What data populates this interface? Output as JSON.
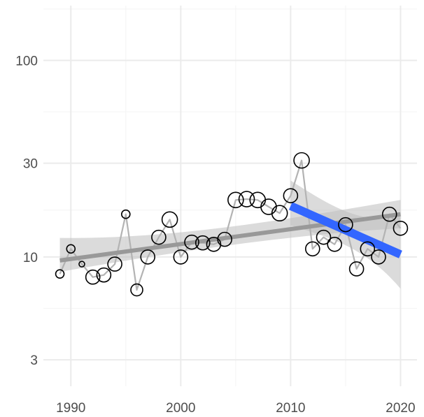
{
  "chart_data": {
    "type": "scatter",
    "title": "",
    "xlabel": "",
    "ylabel": "",
    "y_scale": "log10",
    "xlim": [
      1987.5,
      2021.5
    ],
    "ylim": [
      2.2,
      190
    ],
    "grid": true,
    "x_ticks": [
      1990,
      2000,
      2010,
      2020
    ],
    "x_tick_labels": [
      "1990",
      "2000",
      "2010",
      "2020"
    ],
    "y_ticks": [
      3,
      10,
      30,
      100
    ],
    "y_tick_labels": [
      "3",
      "10",
      "30",
      "100"
    ],
    "points": [
      {
        "x": 1989,
        "y": 8.2,
        "size": 1
      },
      {
        "x": 1990,
        "y": 11.0,
        "size": 1
      },
      {
        "x": 1991,
        "y": 9.2,
        "size": 0
      },
      {
        "x": 1992,
        "y": 7.9,
        "size": 3
      },
      {
        "x": 1993,
        "y": 8.1,
        "size": 3
      },
      {
        "x": 1994,
        "y": 9.2,
        "size": 3
      },
      {
        "x": 1995,
        "y": 16.5,
        "size": 1
      },
      {
        "x": 1996,
        "y": 6.8,
        "size": 2
      },
      {
        "x": 1997,
        "y": 10.0,
        "size": 3
      },
      {
        "x": 1998,
        "y": 12.6,
        "size": 3
      },
      {
        "x": 1999,
        "y": 15.5,
        "size": 4
      },
      {
        "x": 2000,
        "y": 10.0,
        "size": 3
      },
      {
        "x": 2001,
        "y": 11.9,
        "size": 3
      },
      {
        "x": 2002,
        "y": 11.8,
        "size": 3
      },
      {
        "x": 2003,
        "y": 11.6,
        "size": 3
      },
      {
        "x": 2004,
        "y": 12.3,
        "size": 3
      },
      {
        "x": 2005,
        "y": 19.5,
        "size": 4
      },
      {
        "x": 2006,
        "y": 19.7,
        "size": 4
      },
      {
        "x": 2007,
        "y": 19.5,
        "size": 4
      },
      {
        "x": 2008,
        "y": 18.0,
        "size": 4
      },
      {
        "x": 2009,
        "y": 16.7,
        "size": 4
      },
      {
        "x": 2010,
        "y": 20.5,
        "size": 3
      },
      {
        "x": 2011,
        "y": 31.0,
        "size": 4
      },
      {
        "x": 2012,
        "y": 11.0,
        "size": 3
      },
      {
        "x": 2013,
        "y": 12.6,
        "size": 3
      },
      {
        "x": 2014,
        "y": 11.6,
        "size": 3
      },
      {
        "x": 2015,
        "y": 14.6,
        "size": 3
      },
      {
        "x": 2016,
        "y": 8.7,
        "size": 3
      },
      {
        "x": 2017,
        "y": 11.0,
        "size": 3
      },
      {
        "x": 2018,
        "y": 10.0,
        "size": 3
      },
      {
        "x": 2019,
        "y": 16.5,
        "size": 3
      },
      {
        "x": 2020,
        "y": 14.0,
        "size": 3
      }
    ],
    "trend_all": {
      "x": [
        1989,
        2020
      ],
      "y": [
        9.6,
        16.5
      ],
      "ci_low": [
        8.4,
        14.0
      ],
      "ci_high": [
        12.5,
        19.5
      ]
    },
    "trend_recent": {
      "x": [
        2010,
        2020
      ],
      "y": [
        18.2,
        10.3
      ],
      "ci_low": [
        14.5,
        6.9
      ],
      "ci_high": [
        24.5,
        16.5
      ]
    },
    "colors": {
      "point_stroke": "#000000",
      "point_fill": "#ffffff",
      "connect_line": "#b3b3b3",
      "trend_all_line": "#999999",
      "ci_band": "#bdbdbd",
      "trend_recent_line": "#3366ff",
      "grid_major": "#ebebeb",
      "grid_minor": "#f5f5f5"
    }
  }
}
